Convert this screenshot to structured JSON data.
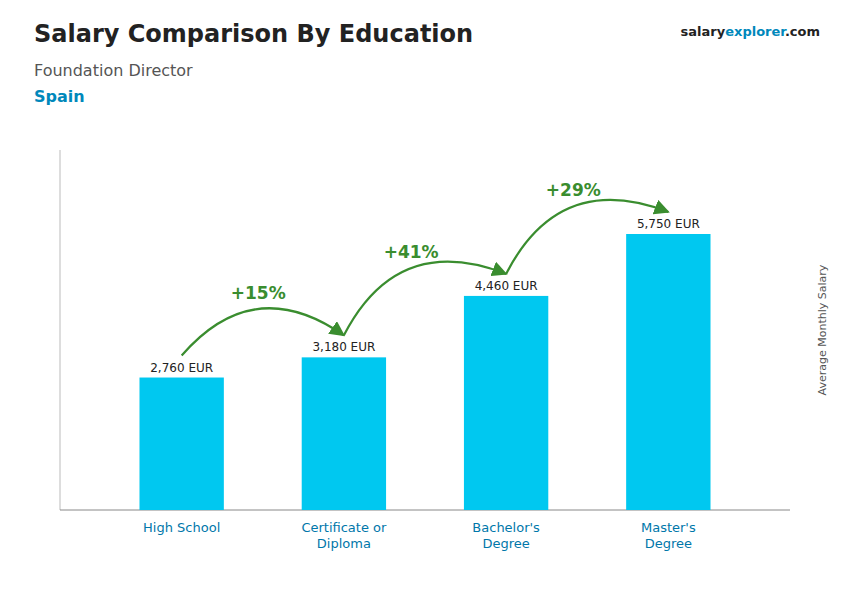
{
  "chart_data": {
    "type": "bar",
    "title": "Salary Comparison By Education",
    "subtitle": "Foundation Director",
    "annotations": {
      "country": "Spain",
      "brand": [
        "salary",
        "explorer",
        ".com"
      ],
      "changes": [
        "+15%",
        "+41%",
        "+29%"
      ]
    },
    "ylabel": "Average Monthly Salary",
    "categories": [
      "High School",
      "Certificate or\nDiploma",
      "Bachelor's\nDegree",
      "Master's\nDegree"
    ],
    "values": [
      2760,
      3180,
      4460,
      5750
    ],
    "value_labels": [
      "2,760 EUR",
      "3,180 EUR",
      "4,460 EUR",
      "5,750 EUR"
    ],
    "data_labels": true,
    "color": "#00c8f0",
    "ylim": [
      0,
      7500
    ],
    "tick_labels": "x",
    "grid": false
  }
}
